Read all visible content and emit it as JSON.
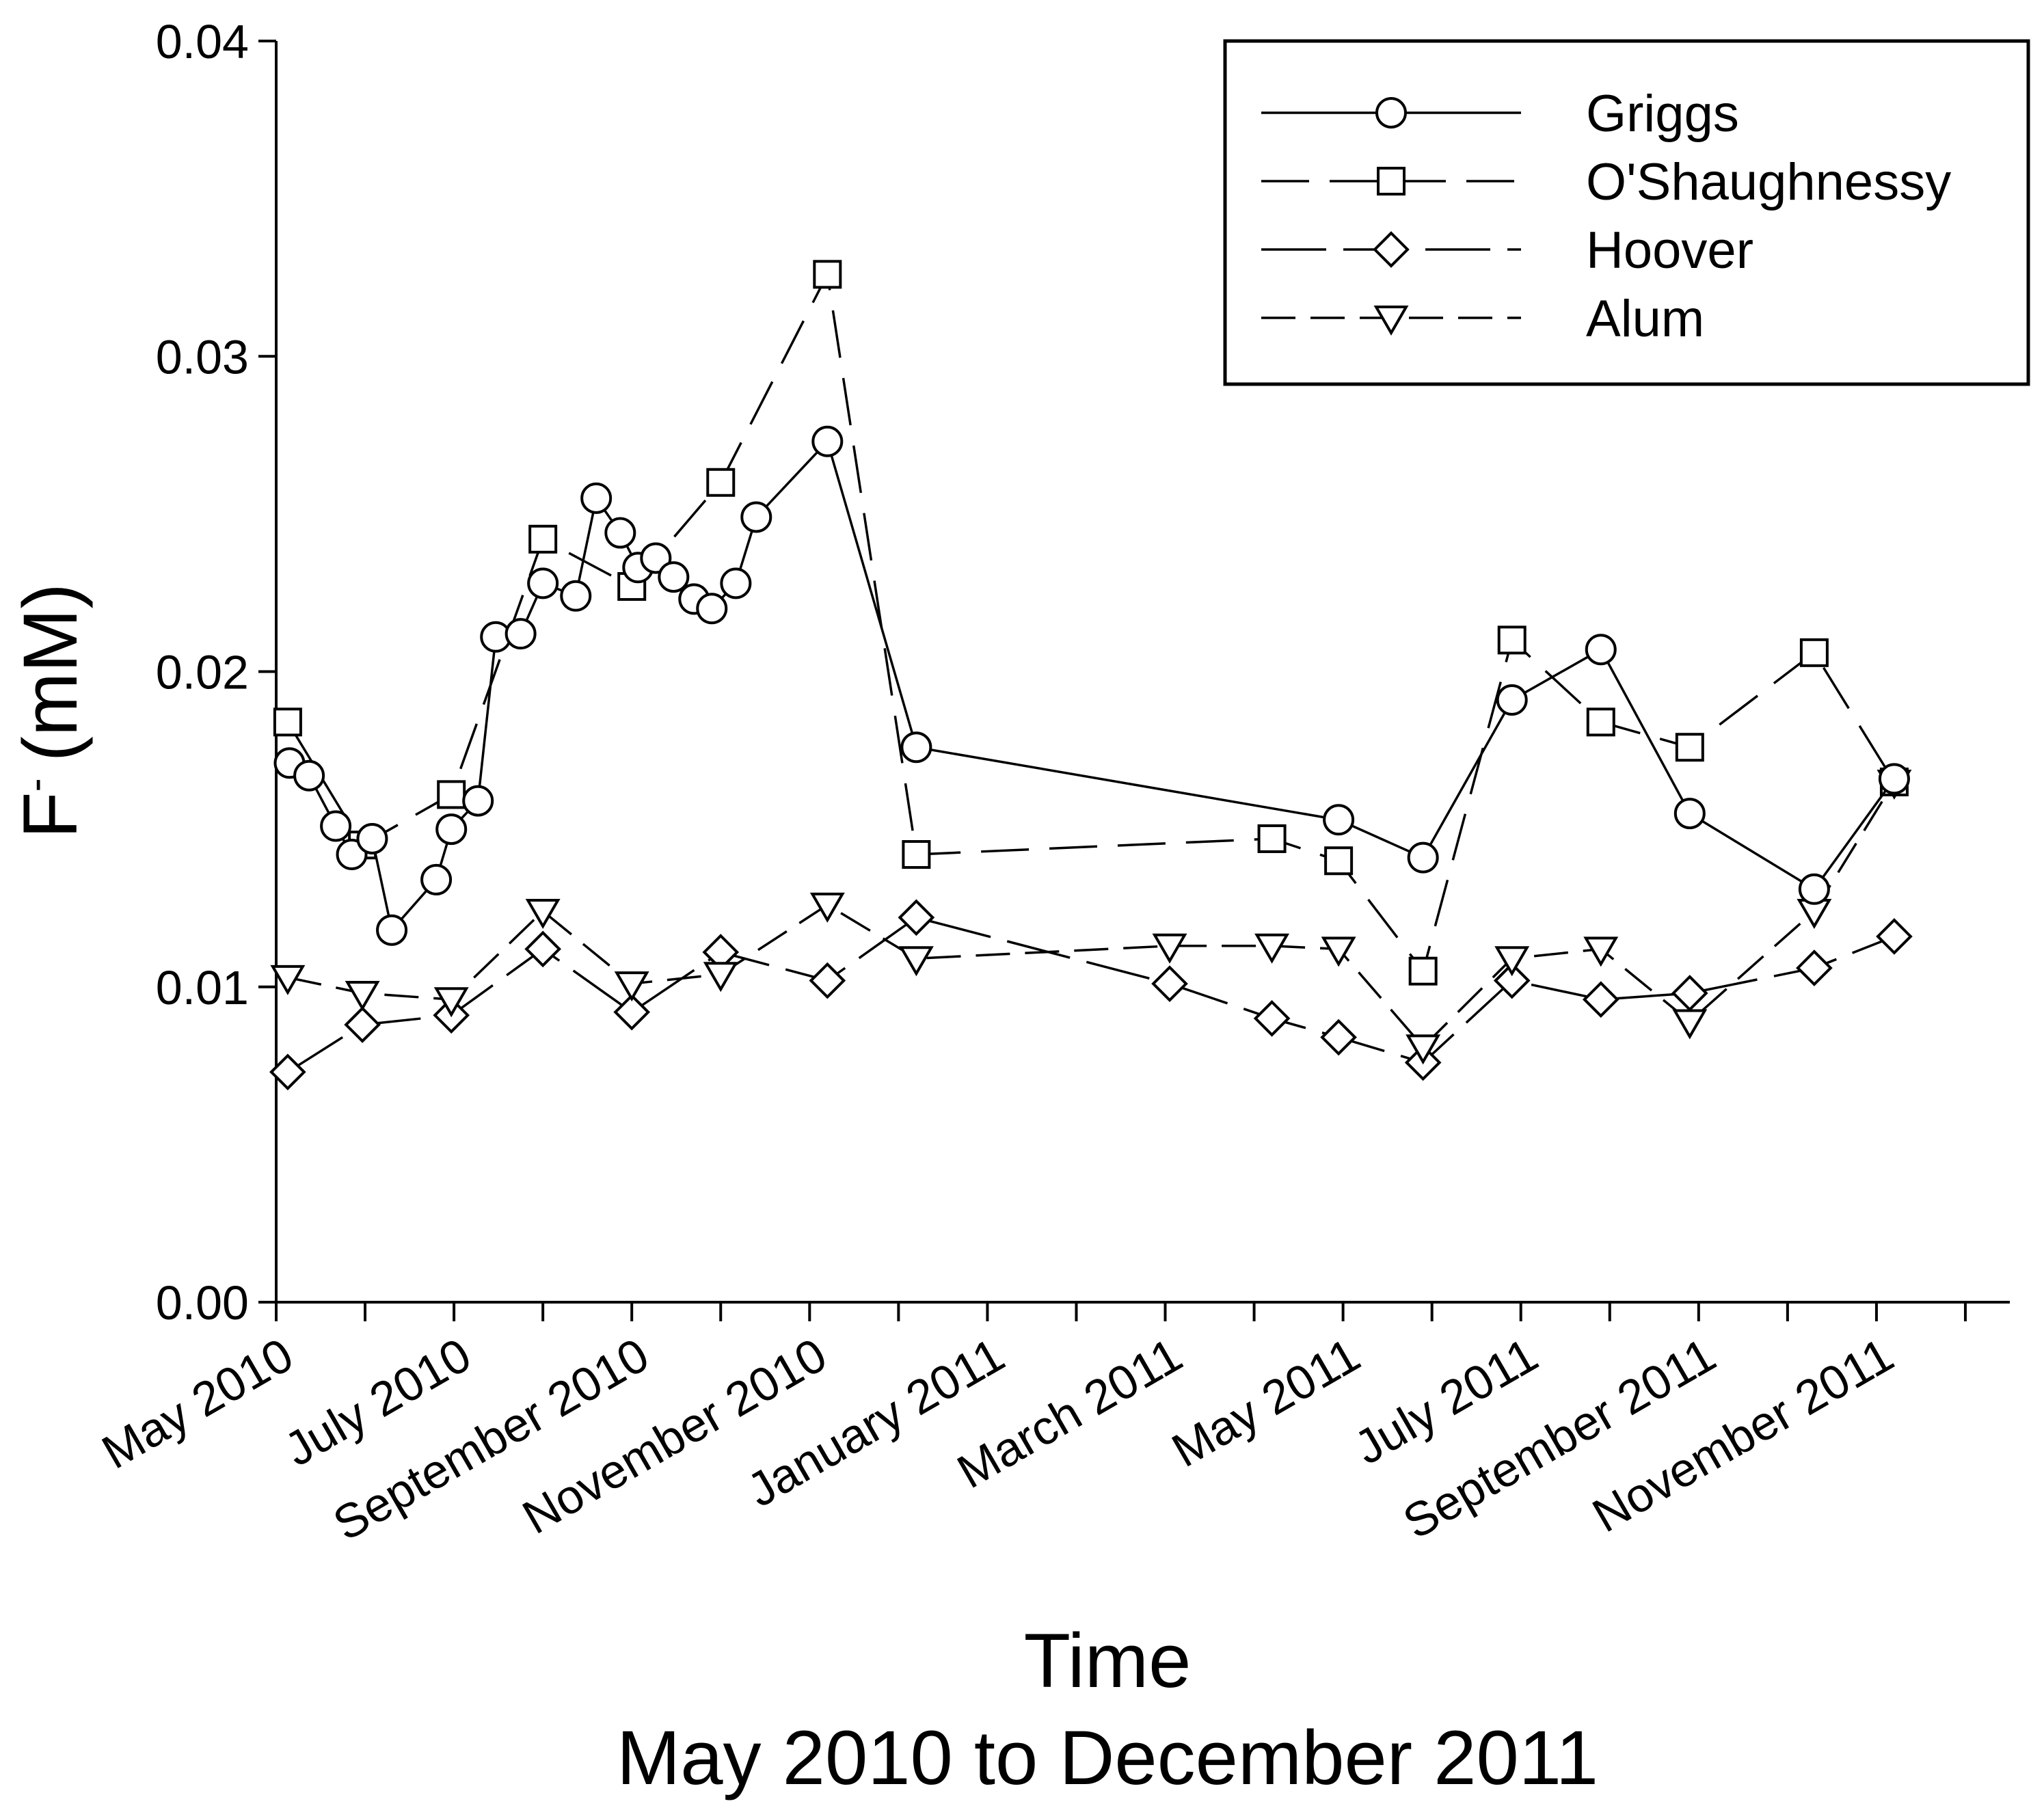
{
  "chart_data": {
    "type": "line",
    "title": "",
    "xlabel": "Time",
    "subtitle": "May 2010 to December 2011",
    "ylabel_main": "F",
    "ylabel_sup": "-",
    "ylabel_unit": "(mM)",
    "ylim": [
      0,
      0.04
    ],
    "yticks": [
      "0.00",
      "0.01",
      "0.02",
      "0.03",
      "0.04"
    ],
    "xlim_month": [
      0,
      19.5
    ],
    "xticks": [
      {
        "label": "May 2010",
        "m": 0
      },
      {
        "label": "July 2010",
        "m": 2
      },
      {
        "label": "September 2010",
        "m": 4
      },
      {
        "label": "November 2010",
        "m": 6
      },
      {
        "label": "January 2011",
        "m": 8
      },
      {
        "label": "March 2011",
        "m": 10
      },
      {
        "label": "May 2011",
        "m": 12
      },
      {
        "label": "July 2011",
        "m": 14
      },
      {
        "label": "September 2011",
        "m": 16
      },
      {
        "label": "November 2011",
        "m": 18
      }
    ],
    "legend_position": "top-right",
    "series": [
      {
        "name": "Griggs",
        "marker": "circle",
        "dash": "",
        "points": [
          [
            0.15,
            0.0171
          ],
          [
            0.37,
            0.0167
          ],
          [
            0.67,
            0.0151
          ],
          [
            0.85,
            0.0142
          ],
          [
            1.08,
            0.0147
          ],
          [
            1.3,
            0.0118
          ],
          [
            1.8,
            0.0134
          ],
          [
            1.97,
            0.015
          ],
          [
            2.27,
            0.0159
          ],
          [
            2.47,
            0.0211
          ],
          [
            2.75,
            0.0212
          ],
          [
            3.0,
            0.0228
          ],
          [
            3.37,
            0.0224
          ],
          [
            3.6,
            0.0255
          ],
          [
            3.87,
            0.0244
          ],
          [
            4.07,
            0.0233
          ],
          [
            4.27,
            0.0236
          ],
          [
            4.47,
            0.023
          ],
          [
            4.7,
            0.0223
          ],
          [
            4.9,
            0.022
          ],
          [
            5.17,
            0.0228
          ],
          [
            5.4,
            0.0249
          ],
          [
            6.2,
            0.0273
          ],
          [
            7.2,
            0.0176
          ],
          [
            11.95,
            0.0153
          ],
          [
            12.9,
            0.0141
          ],
          [
            13.9,
            0.0191
          ],
          [
            14.9,
            0.0207
          ],
          [
            15.9,
            0.0155
          ],
          [
            17.3,
            0.0131
          ],
          [
            18.2,
            0.0166
          ]
        ]
      },
      {
        "name": "O'Shaughnessy",
        "marker": "square",
        "dash": "70,30",
        "points": [
          [
            0.13,
            0.0184
          ],
          [
            0.97,
            0.0145
          ],
          [
            1.97,
            0.0161
          ],
          [
            3.0,
            0.0242
          ],
          [
            4.0,
            0.0227
          ],
          [
            5.0,
            0.026
          ],
          [
            6.2,
            0.0326
          ],
          [
            7.2,
            0.0142
          ],
          [
            11.2,
            0.0147
          ],
          [
            11.95,
            0.014
          ],
          [
            12.9,
            0.0105
          ],
          [
            13.9,
            0.021
          ],
          [
            14.9,
            0.0184
          ],
          [
            15.9,
            0.0176
          ],
          [
            17.3,
            0.0206
          ],
          [
            18.2,
            0.0165
          ]
        ]
      },
      {
        "name": "Hoover",
        "marker": "diamond",
        "dash": "95,25",
        "points": [
          [
            0.13,
            0.0073
          ],
          [
            0.97,
            0.0088
          ],
          [
            1.97,
            0.0091
          ],
          [
            3.0,
            0.0112
          ],
          [
            4.0,
            0.0092
          ],
          [
            5.0,
            0.0111
          ],
          [
            6.2,
            0.0102
          ],
          [
            7.2,
            0.0122
          ],
          [
            10.05,
            0.0101
          ],
          [
            11.2,
            0.009
          ],
          [
            11.95,
            0.0084
          ],
          [
            12.9,
            0.0076
          ],
          [
            13.9,
            0.0102
          ],
          [
            14.9,
            0.0096
          ],
          [
            15.9,
            0.0098
          ],
          [
            17.3,
            0.0106
          ],
          [
            18.2,
            0.0116
          ]
        ]
      },
      {
        "name": "Alum",
        "marker": "triangle-down",
        "dash": "50,22",
        "points": [
          [
            0.13,
            0.0103
          ],
          [
            0.97,
            0.0098
          ],
          [
            1.97,
            0.0096
          ],
          [
            3.0,
            0.0124
          ],
          [
            4.0,
            0.0101
          ],
          [
            5.0,
            0.0104
          ],
          [
            6.2,
            0.0126
          ],
          [
            7.2,
            0.0109
          ],
          [
            10.05,
            0.0113
          ],
          [
            11.2,
            0.0113
          ],
          [
            11.95,
            0.0112
          ],
          [
            12.9,
            0.0081
          ],
          [
            13.9,
            0.0109
          ],
          [
            14.9,
            0.0112
          ],
          [
            15.9,
            0.0089
          ],
          [
            17.3,
            0.0124
          ],
          [
            18.2,
            0.0165
          ]
        ]
      }
    ]
  }
}
